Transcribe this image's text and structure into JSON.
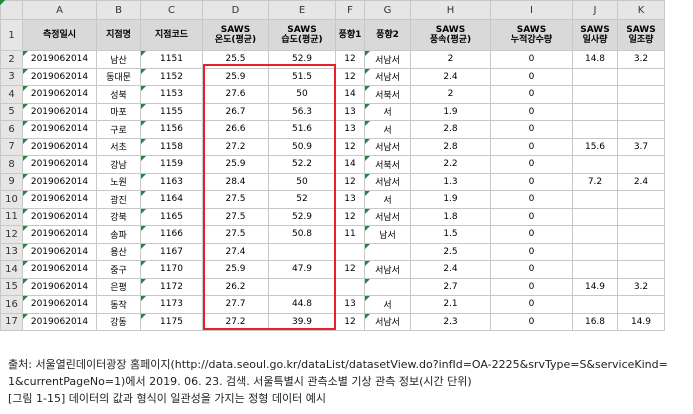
{
  "columns": [
    "A",
    "B",
    "C",
    "D",
    "E",
    "F",
    "G",
    "H",
    "I",
    "J",
    "K"
  ],
  "headers": [
    [
      "측정일시"
    ],
    [
      "지점명"
    ],
    [
      "지점코드"
    ],
    [
      "SAWS",
      "온도(평균)"
    ],
    [
      "SAWS",
      "습도(평균)"
    ],
    [
      "풍향1"
    ],
    [
      "풍향2"
    ],
    [
      "SAWS",
      "풍속(평균)"
    ],
    [
      "SAWS",
      "누적강수량"
    ],
    [
      "SAWS",
      "일사량"
    ],
    [
      "SAWS",
      "일조량"
    ]
  ],
  "rows": [
    [
      "2",
      "2019062014",
      "남산",
      "1151",
      "25.5",
      "52.9",
      "12",
      "서남서",
      "2",
      "0",
      "14.8",
      "3.2"
    ],
    [
      "3",
      "2019062014",
      "동대문",
      "1152",
      "25.9",
      "51.5",
      "12",
      "서남서",
      "2.4",
      "0",
      "",
      ""
    ],
    [
      "4",
      "2019062014",
      "성북",
      "1153",
      "27.6",
      "50",
      "14",
      "서북서",
      "2",
      "0",
      "",
      ""
    ],
    [
      "5",
      "2019062014",
      "마포",
      "1155",
      "26.7",
      "56.3",
      "13",
      "서",
      "1.9",
      "0",
      "",
      ""
    ],
    [
      "6",
      "2019062014",
      "구로",
      "1156",
      "26.6",
      "51.6",
      "13",
      "서",
      "2.8",
      "0",
      "",
      ""
    ],
    [
      "7",
      "2019062014",
      "서초",
      "1158",
      "27.2",
      "50.9",
      "12",
      "서남서",
      "2.8",
      "0",
      "15.6",
      "3.7"
    ],
    [
      "8",
      "2019062014",
      "강남",
      "1159",
      "25.9",
      "52.2",
      "14",
      "서북서",
      "2.2",
      "0",
      "",
      ""
    ],
    [
      "9",
      "2019062014",
      "노원",
      "1163",
      "28.4",
      "50",
      "12",
      "서남서",
      "1.3",
      "0",
      "7.2",
      "2.4"
    ],
    [
      "10",
      "2019062014",
      "광진",
      "1164",
      "27.5",
      "52",
      "13",
      "서",
      "1.9",
      "0",
      "",
      ""
    ],
    [
      "11",
      "2019062014",
      "강북",
      "1165",
      "27.5",
      "52.9",
      "12",
      "서남서",
      "1.8",
      "0",
      "",
      ""
    ],
    [
      "12",
      "2019062014",
      "송파",
      "1166",
      "27.5",
      "50.8",
      "11",
      "남서",
      "1.5",
      "0",
      "",
      ""
    ],
    [
      "13",
      "2019062014",
      "용산",
      "1167",
      "27.4",
      "",
      "",
      "",
      "2.5",
      "0",
      "",
      ""
    ],
    [
      "14",
      "2019062014",
      "중구",
      "1170",
      "25.9",
      "47.9",
      "12",
      "서남서",
      "2.4",
      "0",
      "",
      ""
    ],
    [
      "15",
      "2019062014",
      "은평",
      "1172",
      "26.2",
      "",
      "",
      "",
      "2.7",
      "0",
      "14.9",
      "3.2"
    ],
    [
      "16",
      "2019062014",
      "동작",
      "1173",
      "27.7",
      "44.8",
      "13",
      "서",
      "2.1",
      "0",
      "",
      ""
    ],
    [
      "17",
      "2019062014",
      "강동",
      "1175",
      "27.2",
      "39.9",
      "12",
      "서남서",
      "2.3",
      "0",
      "16.8",
      "14.9"
    ]
  ],
  "header_row_number": "1",
  "caption": {
    "line1": "출처: 서울열린데이터광장 홈페이지(http://data.seoul.go.kr/dataList/datasetView.do?infId=OA-2225&srvType=S&serviceKind=",
    "line2": "1&currentPageNo=1)에서 2019. 06. 23. 검색. 서울특별시 관측소별 기상 관측 정보(시간 단위)",
    "line3": "[그림 1-15] 데이터의 값과 형식이 일관성을 가지는 정형 데이터 예시"
  },
  "colors": {
    "highlight_border": "#e8202b",
    "header_fill": "#d9d9d9",
    "cell_marker": "#1e8a3c"
  }
}
